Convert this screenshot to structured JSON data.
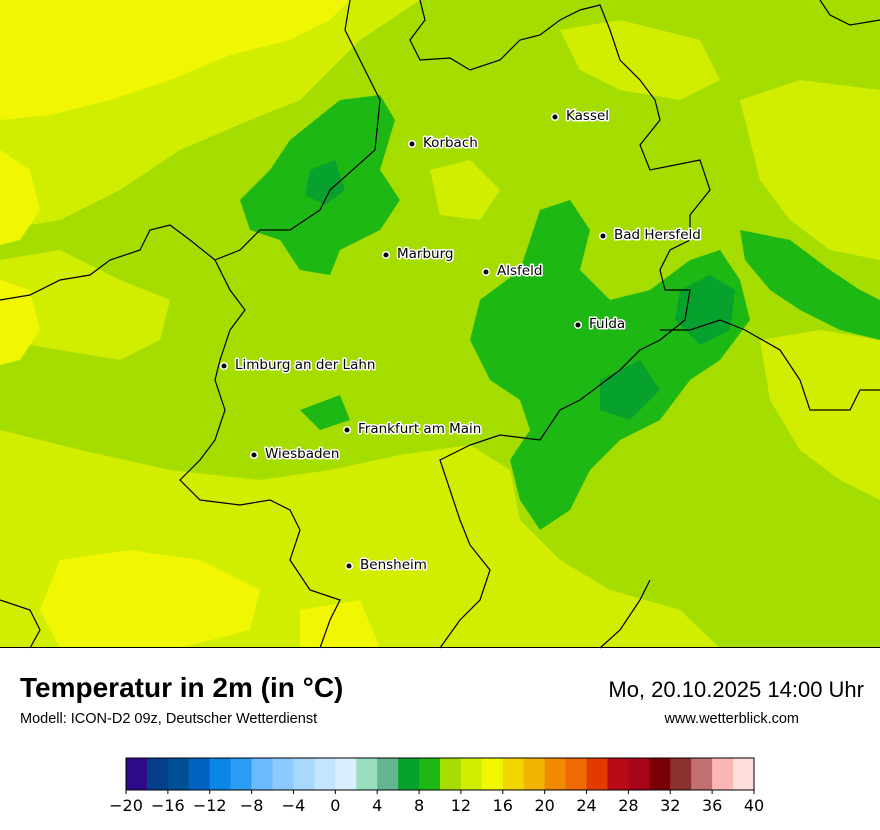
{
  "map": {
    "cities": [
      {
        "name": "Kassel"
      },
      {
        "name": "Korbach"
      },
      {
        "name": "Bad Hersfeld"
      },
      {
        "name": "Marburg"
      },
      {
        "name": "Alsfeld"
      },
      {
        "name": "Fulda"
      },
      {
        "name": "Limburg an der Lahn"
      },
      {
        "name": "Frankfurt am Main"
      },
      {
        "name": "Wiesbaden"
      },
      {
        "name": "Bensheim"
      }
    ],
    "colors": {
      "yellow": "#f0f700",
      "yellow_green": "#d2ee00",
      "light_green": "#a6dd00",
      "mid_green": "#1eb814",
      "dark_green": "#07a12d"
    }
  },
  "footer": {
    "title": "Temperatur in 2m (in °C)",
    "model": "Modell: ICON-D2 09z, Deutscher Wetterdienst",
    "datetime": "Mo, 20.10.2025 14:00 Uhr",
    "website": "www.wetterblick.com"
  },
  "scale": {
    "colors": [
      "#2e0a8a",
      "#043e8a",
      "#004e94",
      "#0062c0",
      "#0a86e8",
      "#2d9cf5",
      "#6db9ff",
      "#8cc9ff",
      "#a9d8ff",
      "#c4e4ff",
      "#dbeeff",
      "#99dfbf",
      "#63b58f",
      "#07a12d",
      "#1eb814",
      "#a6dd00",
      "#d2ee00",
      "#f0f700",
      "#f3d600",
      "#f2b400",
      "#f08a00",
      "#ef6a00",
      "#e33a00",
      "#b60a16",
      "#a8051a",
      "#7a0008",
      "#8d3030",
      "#c27070",
      "#fbb6b6",
      "#ffdede"
    ],
    "ticks": [
      "−20",
      "−16",
      "−12",
      "−8",
      "−4",
      "0",
      "4",
      "8",
      "12",
      "16",
      "20",
      "24",
      "28",
      "32",
      "36",
      "40"
    ]
  }
}
